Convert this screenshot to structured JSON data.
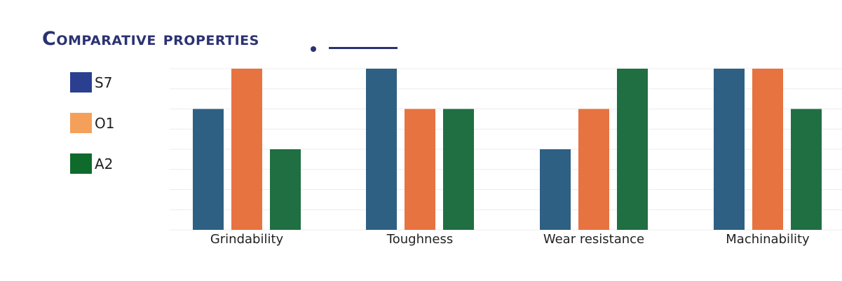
{
  "title": "Comparative properties",
  "chart_data": {
    "type": "bar",
    "categories": [
      "Grindability",
      "Toughness",
      "Wear resistance",
      "Machinability"
    ],
    "series": [
      {
        "name": "S7",
        "values": [
          3,
          4,
          2,
          4
        ]
      },
      {
        "name": "O1",
        "values": [
          4,
          3,
          3,
          4
        ]
      },
      {
        "name": "A2",
        "values": [
          2,
          3,
          4,
          3
        ]
      }
    ],
    "ylim": [
      0,
      4
    ],
    "grid": true,
    "legend_position": "left",
    "legend_colors": [
      "#2b3f91",
      "#f5a05a",
      "#0f6b2c"
    ],
    "bar_colors": [
      "#2e6083",
      "#e77340",
      "#1f6f43"
    ]
  }
}
